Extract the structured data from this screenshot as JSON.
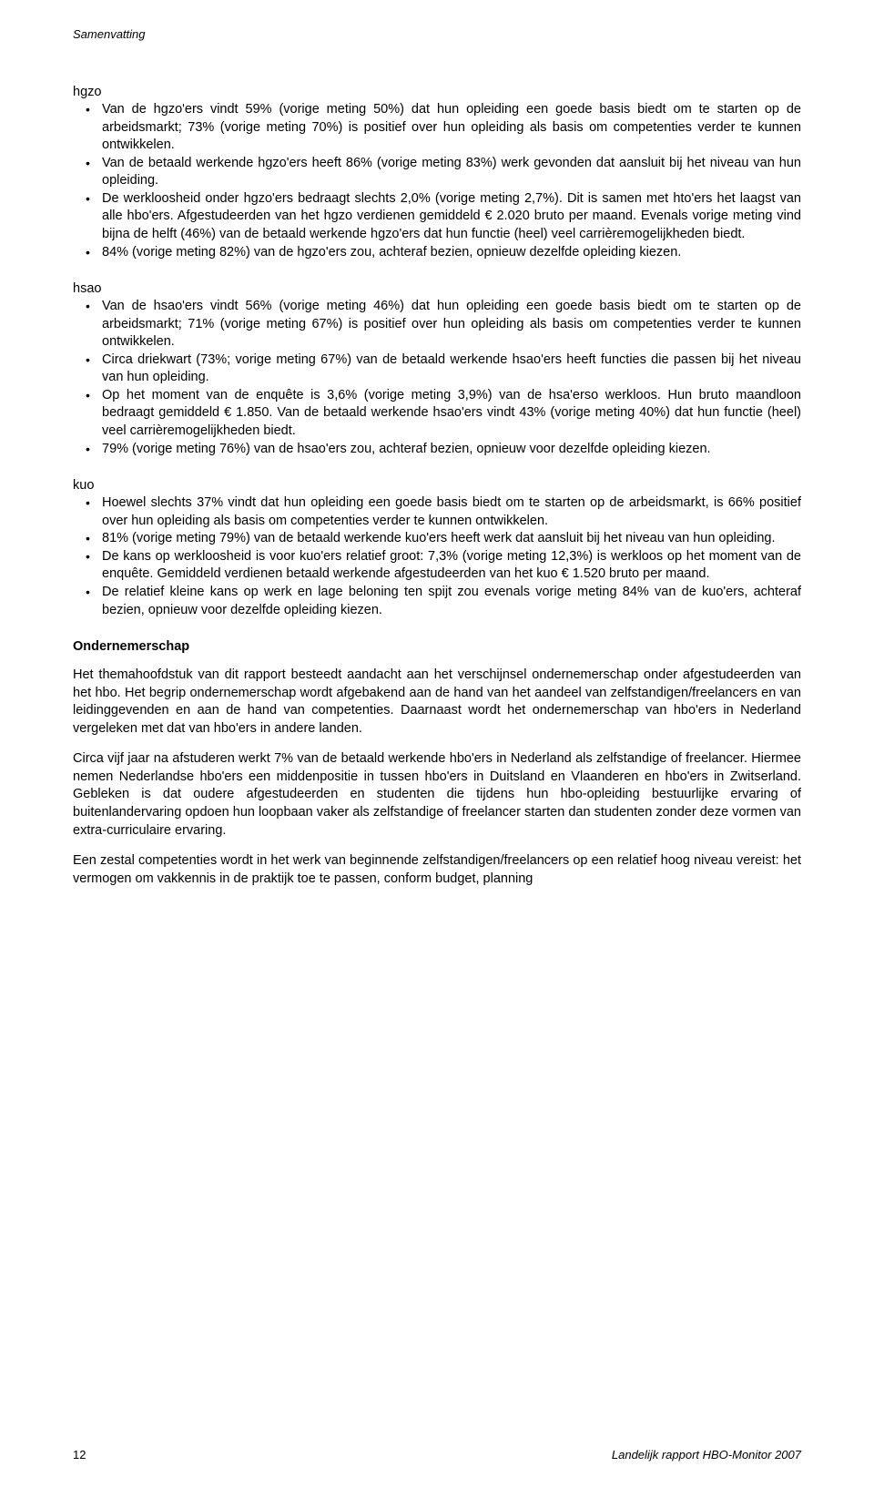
{
  "header": {
    "title": "Samenvatting"
  },
  "sections": {
    "hgzo": {
      "label": "hgzo",
      "items": [
        "Van de hgzo'ers vindt 59% (vorige meting 50%) dat hun opleiding een goede basis biedt om te starten op de arbeidsmarkt; 73% (vorige meting 70%) is positief over hun opleiding als basis om competenties verder te kunnen ontwikkelen.",
        "Van de betaald werkende hgzo'ers heeft 86% (vorige meting 83%) werk gevonden dat aansluit bij het niveau van hun opleiding.",
        "De werkloosheid onder hgzo'ers bedraagt slechts 2,0% (vorige meting 2,7%). Dit is samen met hto'ers het laagst van alle hbo'ers. Afgestudeerden van het hgzo verdienen gemiddeld € 2.020 bruto per maand. Evenals vorige meting vind bijna de helft (46%) van de betaald werkende hgzo'ers dat hun functie (heel) veel carrièremogelijkheden biedt.",
        "84% (vorige meting 82%) van de hgzo'ers zou, achteraf bezien, opnieuw dezelfde opleiding kiezen."
      ]
    },
    "hsao": {
      "label": "hsao",
      "items": [
        "Van de hsao'ers vindt 56% (vorige meting 46%) dat hun opleiding een goede basis biedt om te starten op de arbeidsmarkt; 71% (vorige meting 67%) is positief over hun opleiding als basis om competenties verder te kunnen ontwikkelen.",
        "Circa driekwart (73%; vorige meting 67%) van de betaald werkende hsao'ers heeft functies die passen bij het niveau van hun opleiding.",
        "Op het moment van de enquête is 3,6% (vorige meting 3,9%) van de hsa'erso werkloos. Hun bruto maandloon bedraagt gemiddeld € 1.850. Van de betaald werkende hsao'ers vindt 43% (vorige meting 40%) dat hun functie (heel) veel carrièremogelijkheden biedt.",
        "79% (vorige meting 76%) van de hsao'ers zou, achteraf bezien, opnieuw voor dezelfde opleiding kiezen."
      ]
    },
    "kuo": {
      "label": "kuo",
      "items": [
        "Hoewel slechts 37% vindt dat hun opleiding een goede basis biedt om te starten op de arbeidsmarkt, is 66% positief over hun opleiding als basis om competenties verder te kunnen ontwikkelen.",
        "81% (vorige meting 79%) van de betaald werkende kuo'ers heeft werk dat aansluit bij het niveau van hun opleiding.",
        "De kans op werkloosheid is voor kuo'ers relatief groot: 7,3% (vorige meting 12,3%) is werkloos op het moment van de enquête. Gemiddeld verdienen betaald werkende afgestudeerden van het kuo € 1.520 bruto per maand.",
        "De relatief kleine kans op werk en lage beloning ten spijt zou evenals vorige meting 84% van de kuo'ers, achteraf bezien, opnieuw voor dezelfde opleiding kiezen."
      ]
    }
  },
  "ondernemerschap": {
    "heading": "Ondernemerschap",
    "paragraphs": [
      "Het themahoofdstuk van dit rapport besteedt aandacht aan het verschijnsel ondernemerschap onder afgestudeerden van het hbo. Het begrip ondernemerschap wordt afgebakend aan de hand van het aandeel van zelfstandigen/freelancers en van leidinggevenden en aan de hand van competenties. Daarnaast wordt het ondernemerschap van hbo'ers in Nederland vergeleken met dat van hbo'ers in andere landen.",
      "Circa vijf jaar na afstuderen werkt 7% van de betaald werkende hbo'ers in Nederland als zelfstandige of freelancer. Hiermee nemen Nederlandse hbo'ers een middenpositie in tussen hbo'ers in Duitsland en Vlaanderen en hbo'ers in Zwitserland. Gebleken is dat oudere afgestudeerden en studenten die tijdens hun hbo-opleiding bestuurlijke ervaring of buitenlandervaring opdoen hun loopbaan vaker als zelfstandige of freelancer starten dan studenten zonder deze vormen van extra-curriculaire ervaring.",
      "Een zestal competenties wordt in het werk van beginnende zelfstandigen/freelancers op een relatief hoog niveau vereist: het vermogen om vakkennis in de praktijk toe te passen, conform budget, planning"
    ]
  },
  "footer": {
    "page": "12",
    "report": "Landelijk rapport HBO-Monitor 2007"
  }
}
